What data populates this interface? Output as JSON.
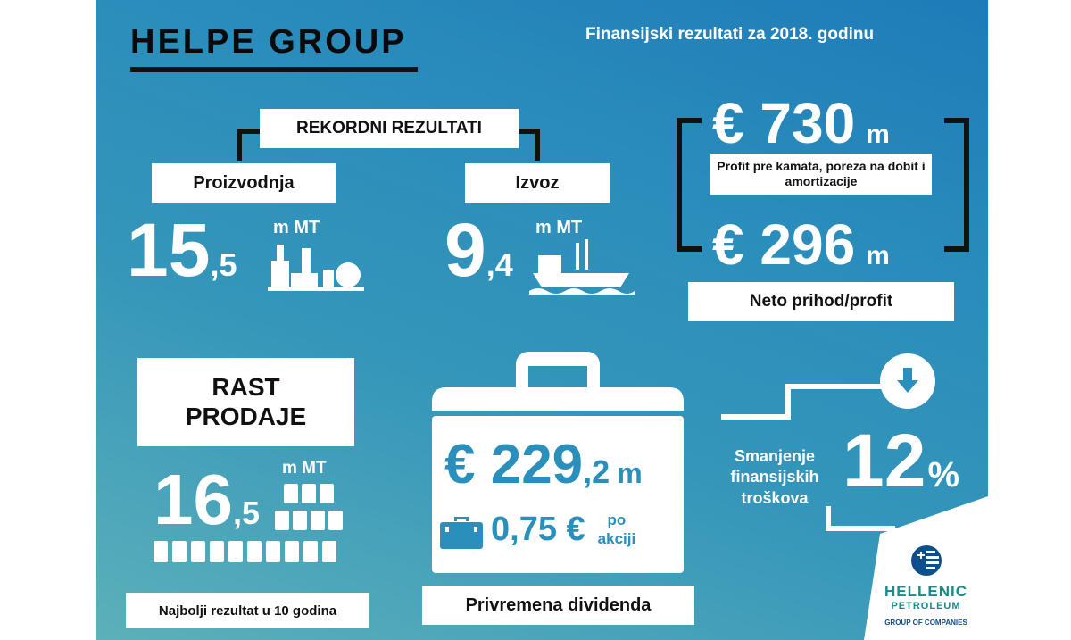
{
  "brand": {
    "title": "HELPE GROUP",
    "subtitle": "Finansijski rezultati za 2018. godinu"
  },
  "record": {
    "label": "REKORDNI REZULTATI",
    "production": {
      "label": "Proizvodnja",
      "value": "15",
      "decimal": ",5",
      "unit": "m MT",
      "icon": "refinery-icon"
    },
    "export": {
      "label": "Izvoz",
      "value": "9",
      "decimal": ",4",
      "unit": "m MT",
      "icon": "ship-icon"
    }
  },
  "profit": {
    "ebitda_value": "€ 730",
    "ebitda_unit": "m",
    "ebitda_label": "Profit pre kamata, poreza na dobit i amortizacije",
    "net_value": "€ 296",
    "net_unit": "m",
    "net_label": "Neto prihod/profit"
  },
  "sales": {
    "title_line1": "RAST",
    "title_line2": "PRODAJE",
    "value": "16",
    "decimal": ",5",
    "unit": "m MT",
    "icon": "barrels-icon",
    "footer": "Najbolji rezultat u 10 godina"
  },
  "dividend": {
    "value": "€ 229",
    "decimal": ",2",
    "unit": "m",
    "per_share": "0,75 €",
    "per_share_label1": "po",
    "per_share_label2": "akciji",
    "footer": "Privremena dividenda",
    "icon": "briefcase-icon"
  },
  "costs": {
    "label_line1": "Smanjenje",
    "label_line2": "finansijskih",
    "label_line3": "troškova",
    "value": "12",
    "unit": "%",
    "icon": "arrow-down-icon"
  },
  "logo": {
    "line1": "HELLENIC",
    "line2": "PETROLEUM",
    "line3": "GROUP OF COMPANIES"
  },
  "colors": {
    "accent": "#2a8fbb",
    "logo_teal": "#1a8a8a",
    "logo_navy": "#0d4f8b"
  }
}
